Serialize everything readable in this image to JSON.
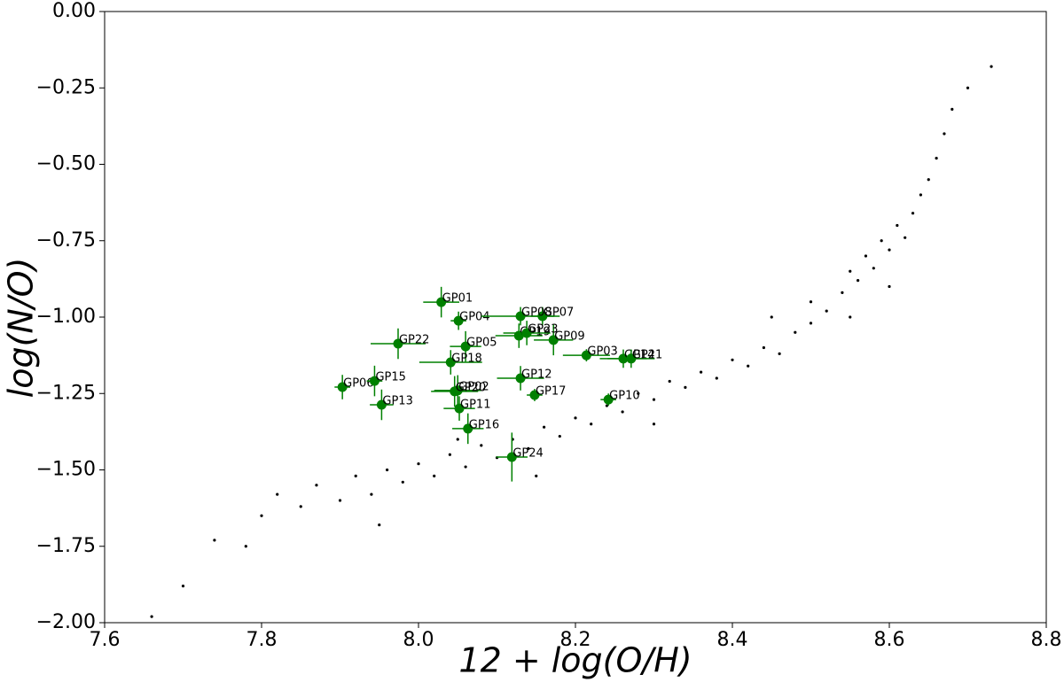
{
  "chart_data": {
    "type": "scatter",
    "xlabel": "12 + log(O/H)",
    "ylabel": "log(N/O)",
    "xlim": [
      7.6,
      8.8
    ],
    "xticks": [
      7.6,
      7.8,
      {
        "value": 8,
        "label": "8.0"
      },
      8.2,
      8.4,
      8.6,
      8.8
    ],
    "ylim": [
      -2,
      0
    ],
    "yticks": [
      {
        "value": -2,
        "label": "−2.00"
      },
      {
        "value": -1.75,
        "label": "−1.75"
      },
      {
        "value": -1.5,
        "label": "−1.50"
      },
      {
        "value": -1.25,
        "label": "−1.25"
      },
      {
        "value": -1,
        "label": "−1.00"
      },
      {
        "value": -0.75,
        "label": "−0.75"
      },
      {
        "value": -0.5,
        "label": "−0.50"
      },
      {
        "value": -0.25,
        "label": "−0.25"
      },
      {
        "value": 0,
        "label": "0.00"
      }
    ],
    "background": {
      "color": "#000000",
      "x": [
        7.66,
        7.7,
        7.74,
        7.78,
        7.8,
        7.82,
        7.85,
        7.87,
        7.9,
        7.92,
        7.94,
        7.96,
        7.98,
        8.0,
        8.02,
        8.04,
        8.06,
        8.08,
        8.1,
        8.12,
        8.14,
        8.16,
        8.18,
        8.2,
        8.22,
        8.24,
        8.26,
        8.28,
        8.3,
        8.32,
        8.34,
        8.36,
        8.38,
        8.4,
        8.42,
        8.44,
        8.46,
        8.48,
        8.5,
        8.5,
        8.52,
        8.54,
        8.55,
        8.56,
        8.57,
        8.58,
        8.59,
        8.6,
        8.61,
        8.62,
        8.63,
        8.64,
        8.65,
        8.66,
        8.67,
        8.68,
        8.7,
        8.73,
        7.95,
        8.05,
        8.15,
        8.3,
        8.45,
        8.55,
        8.6
      ],
      "y": [
        -1.98,
        -1.88,
        -1.73,
        -1.75,
        -1.65,
        -1.58,
        -1.62,
        -1.55,
        -1.6,
        -1.52,
        -1.58,
        -1.5,
        -1.54,
        -1.48,
        -1.52,
        -1.45,
        -1.49,
        -1.42,
        -1.46,
        -1.4,
        -1.43,
        -1.36,
        -1.39,
        -1.33,
        -1.35,
        -1.29,
        -1.31,
        -1.25,
        -1.27,
        -1.21,
        -1.23,
        -1.18,
        -1.2,
        -1.14,
        -1.16,
        -1.1,
        -1.12,
        -1.05,
        -1.02,
        -0.95,
        -0.98,
        -0.92,
        -0.85,
        -0.88,
        -0.8,
        -0.84,
        -0.75,
        -0.78,
        -0.7,
        -0.74,
        -0.66,
        -0.6,
        -0.55,
        -0.48,
        -0.4,
        -0.32,
        -0.25,
        -0.18,
        -1.68,
        -1.4,
        -1.52,
        -1.35,
        -1.0,
        -1.0,
        -0.9
      ]
    },
    "points": {
      "color": "#008000",
      "labels": [
        "GP01",
        "GP02",
        "GP03",
        "GP04",
        "GP05",
        "GP06",
        "GP07",
        "GP08",
        "GP09",
        "GP10",
        "GP11",
        "GP12",
        "GP13",
        "GP14",
        "GP15",
        "GP16",
        "GP17",
        "GP18",
        "GP19",
        "GP20",
        "GP21",
        "GP22",
        "GP23",
        "GP24"
      ],
      "x": [
        8.029,
        8.05,
        8.214,
        8.051,
        8.06,
        7.903,
        8.158,
        8.13,
        8.172,
        8.242,
        8.052,
        8.13,
        7.953,
        8.261,
        7.944,
        8.063,
        8.148,
        8.041,
        8.128,
        8.046,
        8.271,
        7.974,
        8.138,
        8.119
      ],
      "y": [
        -0.951,
        -1.24,
        -1.125,
        -1.012,
        -1.096,
        -1.229,
        -0.997,
        -0.997,
        -1.075,
        -1.27,
        -1.299,
        -1.2,
        -1.287,
        -1.136,
        -1.209,
        -1.365,
        -1.255,
        -1.148,
        -1.061,
        -1.243,
        -1.136,
        -1.087,
        -1.052,
        -1.458
      ],
      "xerr": [
        0.023,
        0.03,
        0.03,
        0.01,
        0.02,
        0.01,
        0.015,
        0.05,
        0.025,
        0.01,
        0.02,
        0.03,
        0.015,
        0.03,
        0.01,
        0.02,
        0.01,
        0.04,
        0.03,
        0.03,
        0.03,
        0.035,
        0.03,
        0.02
      ],
      "yerr": [
        0.05,
        0.05,
        0.02,
        0.03,
        0.05,
        0.04,
        0.03,
        0.03,
        0.05,
        0.02,
        0.04,
        0.04,
        0.05,
        0.03,
        0.05,
        0.05,
        0.02,
        0.04,
        0.04,
        0.05,
        0.03,
        0.05,
        0.04,
        0.08
      ]
    }
  }
}
